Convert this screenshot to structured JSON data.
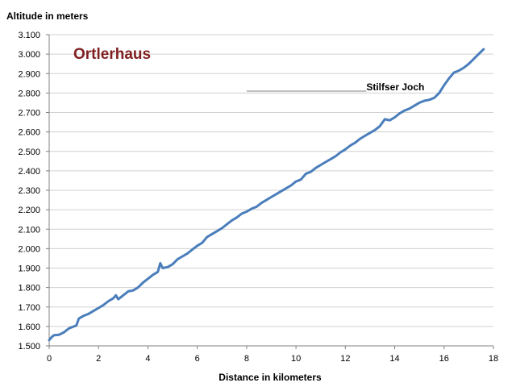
{
  "chart_data": {
    "type": "line",
    "title": "Ortlerhaus",
    "xlabel": "Distance in kilometers",
    "ylabel": "Altitude in meters",
    "xlim": [
      0,
      18
    ],
    "ylim": [
      1500,
      3100
    ],
    "x_ticks": [
      {
        "value": 0,
        "label": "0"
      },
      {
        "value": 2,
        "label": "2"
      },
      {
        "value": 4,
        "label": "4"
      },
      {
        "value": 6,
        "label": "6"
      },
      {
        "value": 8,
        "label": "8"
      },
      {
        "value": 10,
        "label": "10"
      },
      {
        "value": 12,
        "label": "12"
      },
      {
        "value": 14,
        "label": "14"
      },
      {
        "value": 16,
        "label": "16"
      },
      {
        "value": 18,
        "label": "18"
      }
    ],
    "y_ticks": [
      {
        "value": 1500,
        "label": "1.500"
      },
      {
        "value": 1600,
        "label": "1.600"
      },
      {
        "value": 1700,
        "label": "1.700"
      },
      {
        "value": 1800,
        "label": "1.800"
      },
      {
        "value": 1900,
        "label": "1.900"
      },
      {
        "value": 2000,
        "label": "2.000"
      },
      {
        "value": 2100,
        "label": "2.100"
      },
      {
        "value": 2200,
        "label": "2.200"
      },
      {
        "value": 2300,
        "label": "2.300"
      },
      {
        "value": 2400,
        "label": "2.400"
      },
      {
        "value": 2500,
        "label": "2.500"
      },
      {
        "value": 2600,
        "label": "2.600"
      },
      {
        "value": 2700,
        "label": "2.700"
      },
      {
        "value": 2800,
        "label": "2.800"
      },
      {
        "value": 2900,
        "label": "2.900"
      },
      {
        "value": 3000,
        "label": "3.000"
      },
      {
        "value": 3100,
        "label": "3.100"
      }
    ],
    "grid": {
      "horizontal": true,
      "vertical": false
    },
    "series": [
      {
        "color": "#4A7EBB",
        "points": [
          [
            0.0,
            1530
          ],
          [
            0.1,
            1545
          ],
          [
            0.2,
            1555
          ],
          [
            0.4,
            1557
          ],
          [
            0.6,
            1570
          ],
          [
            0.8,
            1590
          ],
          [
            1.0,
            1600
          ],
          [
            1.1,
            1605
          ],
          [
            1.2,
            1640
          ],
          [
            1.4,
            1655
          ],
          [
            1.6,
            1665
          ],
          [
            1.8,
            1680
          ],
          [
            2.0,
            1695
          ],
          [
            2.2,
            1710
          ],
          [
            2.4,
            1730
          ],
          [
            2.6,
            1745
          ],
          [
            2.7,
            1760
          ],
          [
            2.8,
            1740
          ],
          [
            3.0,
            1760
          ],
          [
            3.2,
            1780
          ],
          [
            3.4,
            1785
          ],
          [
            3.6,
            1800
          ],
          [
            3.8,
            1825
          ],
          [
            4.0,
            1845
          ],
          [
            4.2,
            1865
          ],
          [
            4.4,
            1880
          ],
          [
            4.5,
            1925
          ],
          [
            4.6,
            1900
          ],
          [
            4.8,
            1905
          ],
          [
            5.0,
            1920
          ],
          [
            5.2,
            1945
          ],
          [
            5.4,
            1960
          ],
          [
            5.6,
            1975
          ],
          [
            5.8,
            1995
          ],
          [
            6.0,
            2015
          ],
          [
            6.2,
            2030
          ],
          [
            6.4,
            2060
          ],
          [
            6.6,
            2075
          ],
          [
            6.8,
            2090
          ],
          [
            7.0,
            2105
          ],
          [
            7.2,
            2125
          ],
          [
            7.4,
            2145
          ],
          [
            7.6,
            2160
          ],
          [
            7.8,
            2180
          ],
          [
            8.0,
            2190
          ],
          [
            8.2,
            2205
          ],
          [
            8.4,
            2215
          ],
          [
            8.6,
            2235
          ],
          [
            8.8,
            2250
          ],
          [
            9.0,
            2265
          ],
          [
            9.2,
            2280
          ],
          [
            9.4,
            2295
          ],
          [
            9.6,
            2310
          ],
          [
            9.8,
            2325
          ],
          [
            10.0,
            2345
          ],
          [
            10.2,
            2355
          ],
          [
            10.4,
            2385
          ],
          [
            10.6,
            2395
          ],
          [
            10.8,
            2415
          ],
          [
            11.0,
            2430
          ],
          [
            11.2,
            2445
          ],
          [
            11.4,
            2460
          ],
          [
            11.6,
            2475
          ],
          [
            11.8,
            2495
          ],
          [
            12.0,
            2510
          ],
          [
            12.2,
            2530
          ],
          [
            12.4,
            2545
          ],
          [
            12.6,
            2565
          ],
          [
            12.8,
            2580
          ],
          [
            13.0,
            2595
          ],
          [
            13.2,
            2610
          ],
          [
            13.4,
            2630
          ],
          [
            13.6,
            2665
          ],
          [
            13.8,
            2660
          ],
          [
            14.0,
            2675
          ],
          [
            14.2,
            2695
          ],
          [
            14.4,
            2710
          ],
          [
            14.6,
            2720
          ],
          [
            14.8,
            2735
          ],
          [
            15.0,
            2750
          ],
          [
            15.2,
            2760
          ],
          [
            15.4,
            2765
          ],
          [
            15.6,
            2775
          ],
          [
            15.8,
            2800
          ],
          [
            16.0,
            2840
          ],
          [
            16.2,
            2875
          ],
          [
            16.4,
            2905
          ],
          [
            16.6,
            2915
          ],
          [
            16.8,
            2930
          ],
          [
            17.0,
            2950
          ],
          [
            17.2,
            2975
          ],
          [
            17.4,
            3000
          ],
          [
            17.6,
            3025
          ]
        ]
      }
    ],
    "annotations": [
      {
        "text": "Stilfser Joch",
        "x": 12.85,
        "y": 2815,
        "leader": [
          [
            12.85,
            2810
          ],
          [
            8.0,
            2810
          ]
        ]
      }
    ],
    "colors": {
      "title": "#7F1F20",
      "line": "#4A7EBB",
      "grid": "#D0D0D0",
      "axis": "#808080"
    }
  }
}
